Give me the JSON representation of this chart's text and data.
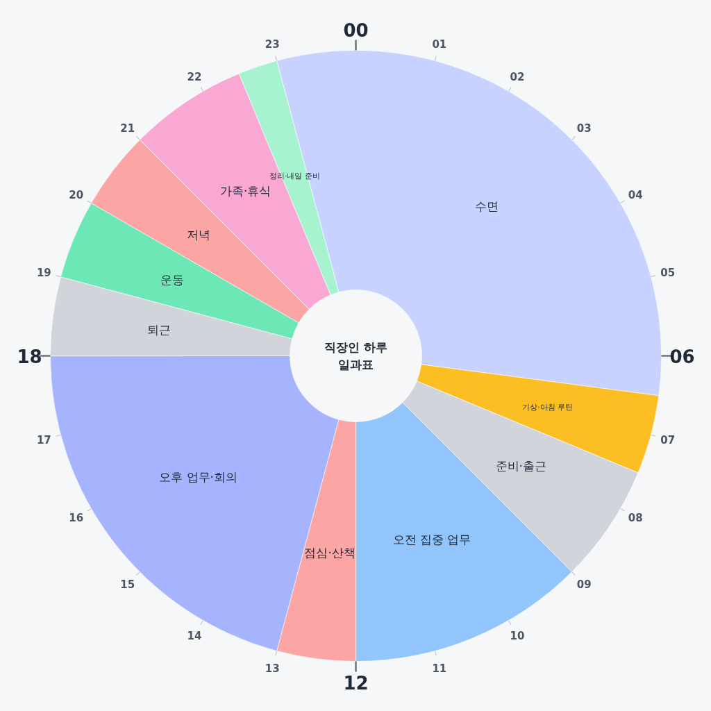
{
  "chart_data": {
    "type": "donut",
    "title": "직장인 하루\n일과표",
    "categories": [
      "수면",
      "기상·아침 루틴",
      "준비·출근",
      "오전 집중 업무",
      "점심·산책",
      "오후 업무·회의",
      "퇴근",
      "운동",
      "저녁",
      "가족·휴식",
      "정리·내일 준비"
    ],
    "values": [
      31.25,
      4.17,
      6.25,
      12.5,
      4.17,
      20.83,
      4.17,
      4.17,
      4.17,
      6.25,
      2.08
    ],
    "colors": [
      "#c7d2fe",
      "#fbbf24",
      "#d1d5db",
      "#93c5fd",
      "#fca5a5",
      "#a5b4fc",
      "#d1d5db",
      "#6ee7b7",
      "#fca5a5",
      "#f9a8d4",
      "#a7f3d0"
    ],
    "annotations": [
      "00",
      "01",
      "02",
      "03",
      "04",
      "05",
      "06",
      "07",
      "08",
      "09",
      "10",
      "11",
      "12",
      "13",
      "14",
      "15",
      "16",
      "17",
      "18",
      "19",
      "20",
      "21",
      "22",
      "23"
    ]
  }
}
